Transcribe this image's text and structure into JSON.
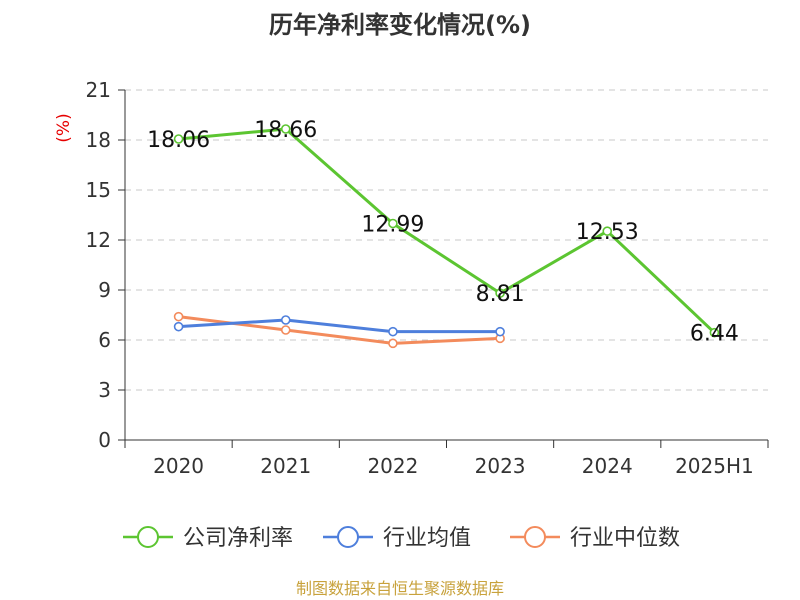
{
  "chart_data": {
    "type": "line",
    "title": "历年净利率变化情况(%)",
    "ylabel": "(%)",
    "categories": [
      "2020",
      "2021",
      "2022",
      "2023",
      "2024",
      "2025H1"
    ],
    "ylim": [
      0,
      21
    ],
    "yticks": [
      0,
      3,
      6,
      9,
      12,
      15,
      18,
      21
    ],
    "grid": true,
    "legend_position": "bottom",
    "series": [
      {
        "name": "公司净利率",
        "color": "#5cc531",
        "values": [
          18.06,
          18.66,
          12.99,
          8.81,
          12.53,
          6.44
        ],
        "labels": [
          "18.06",
          "18.66",
          "12.99",
          "8.81",
          "12.53",
          "6.44"
        ]
      },
      {
        "name": "行业均值",
        "color": "#4e7fdc",
        "values": [
          6.8,
          7.2,
          6.5,
          6.5,
          null,
          null
        ]
      },
      {
        "name": "行业中位数",
        "color": "#f38b5c",
        "values": [
          7.4,
          6.6,
          5.8,
          6.1,
          null,
          null
        ]
      }
    ],
    "source": "制图数据来自恒生聚源数据库"
  }
}
